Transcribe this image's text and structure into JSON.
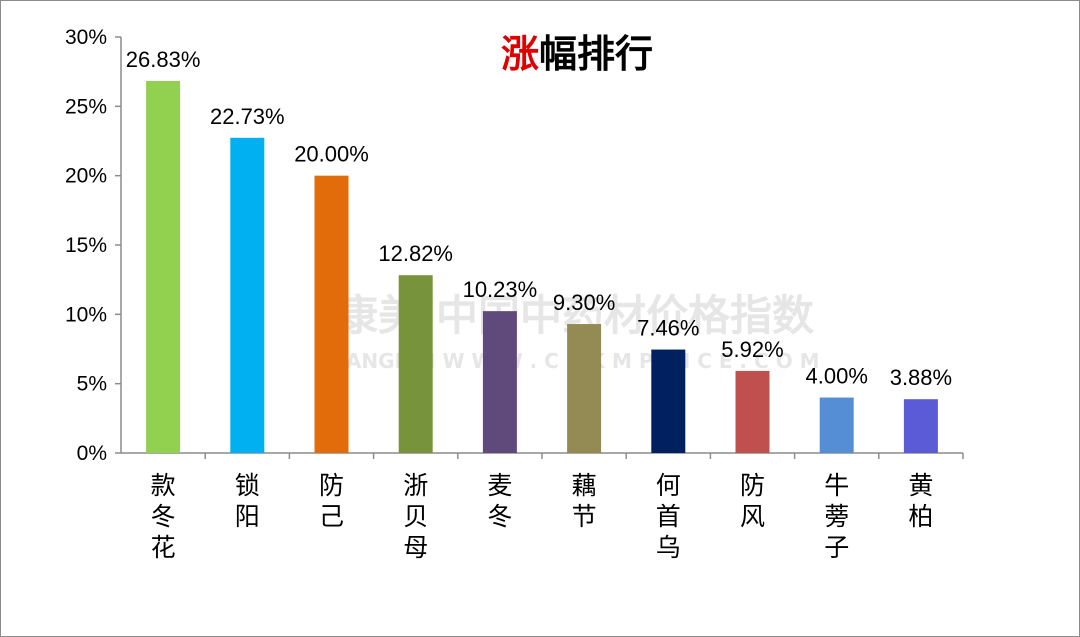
{
  "chart_data": {
    "type": "bar",
    "title_accent": "涨",
    "title_rest": "幅排行",
    "accent_color": "#e00000",
    "categories": [
      "款冬花",
      "锁阳",
      "防己",
      "浙贝母",
      "麦冬",
      "藕节",
      "何首乌",
      "防风",
      "牛蒡子",
      "黄柏"
    ],
    "values": [
      26.83,
      22.73,
      20.0,
      12.82,
      10.23,
      9.3,
      7.46,
      5.92,
      4.0,
      3.88
    ],
    "value_labels": [
      "26.83%",
      "22.73%",
      "20.00%",
      "12.82%",
      "10.23%",
      "9.30%",
      "7.46%",
      "5.92%",
      "4.00%",
      "3.88%"
    ],
    "bar_colors": [
      "#92d050",
      "#00b0f0",
      "#e36c0a",
      "#77933c",
      "#604a7b",
      "#948a54",
      "#002060",
      "#c0504d",
      "#558ed5",
      "#5b5bd6"
    ],
    "yticks": [
      "0%",
      "5%",
      "10%",
      "15%",
      "20%",
      "25%",
      "30%"
    ],
    "ylim": [
      0,
      30
    ],
    "xlabel": "",
    "ylabel": ""
  },
  "watermark": {
    "line1": "康美·中国中药材价格指数",
    "line2": "KANGMEI  W W W . C N K M P R I C E . C O M"
  }
}
